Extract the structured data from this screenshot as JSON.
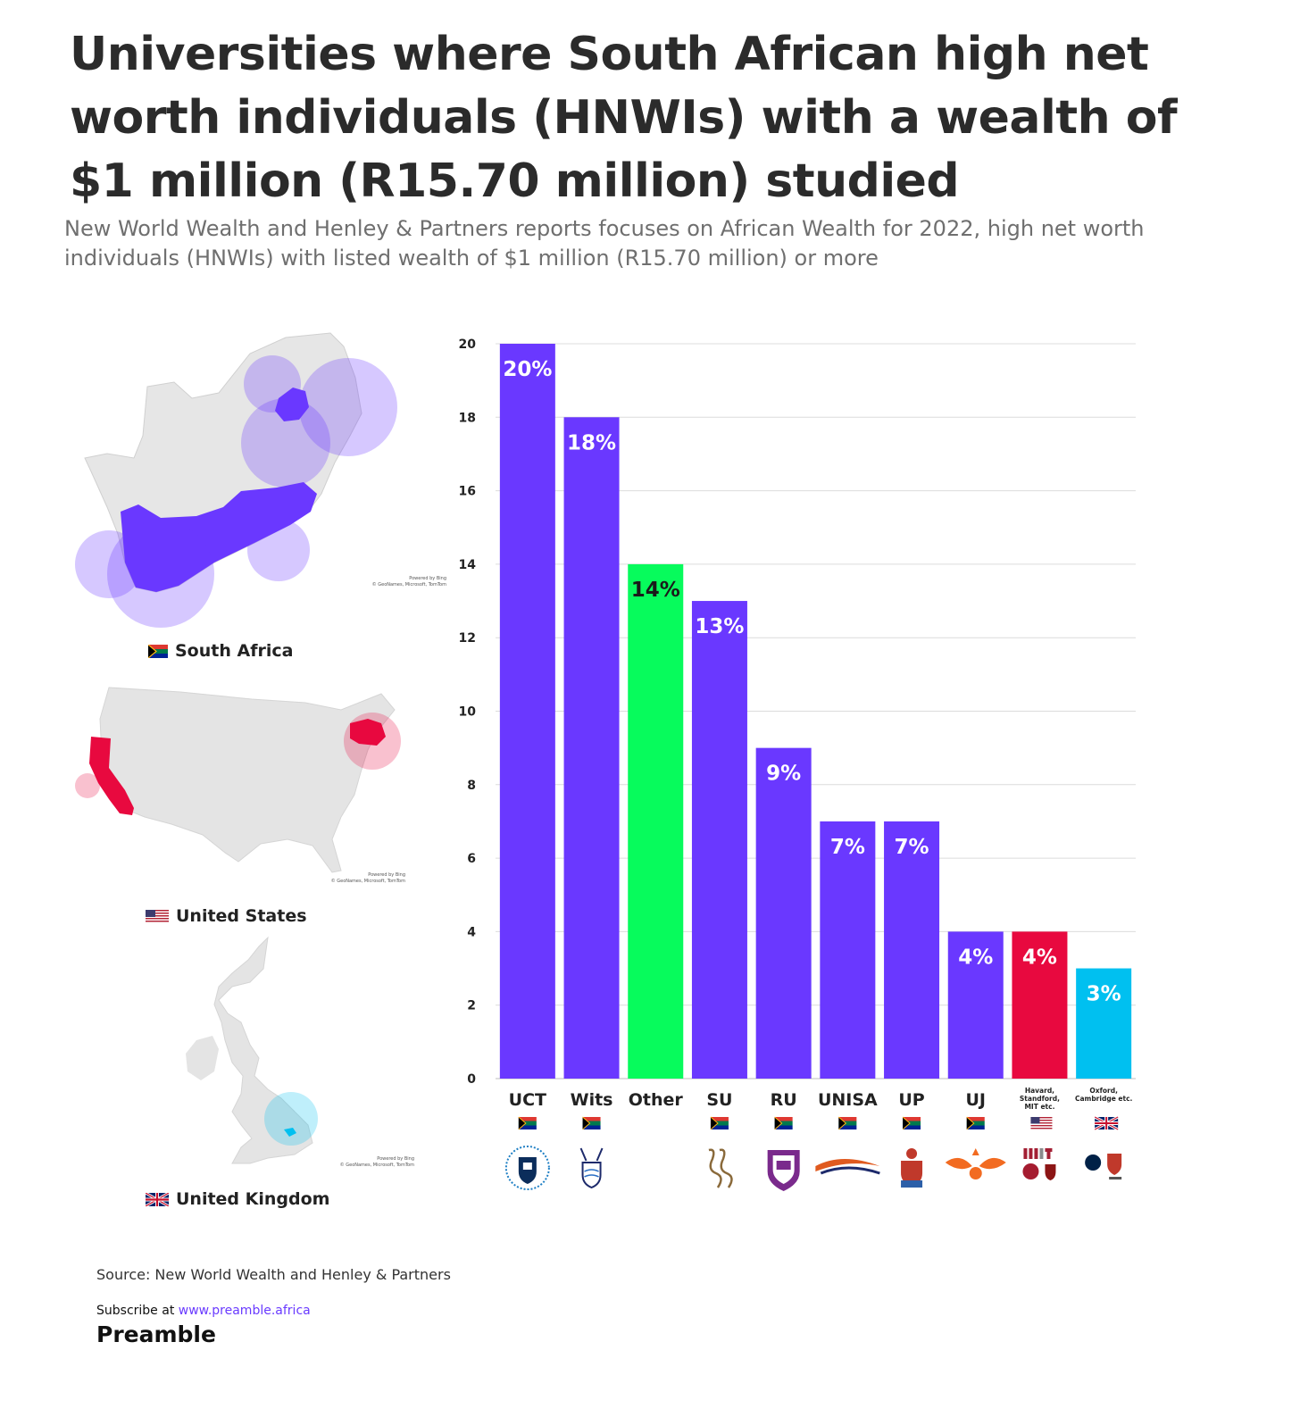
{
  "title": "Universities where South African high net worth individuals (HNWIs) with a wealth of $1 million (R15.70 million) studied",
  "subtitle": "New World Wealth and Henley & Partners reports focuses on African Wealth for 2022, high net worth individuals (HNWIs) with listed wealth of $1 million (R15.70 million) or more",
  "maps": {
    "south_africa": {
      "label": "South Africa",
      "credit_line1": "Powered by Bing",
      "credit_line2": "© GeoNames, Microsoft, TomTom"
    },
    "united_states": {
      "label": "United States",
      "credit_line1": "Powered by Bing",
      "credit_line2": "© GeoNames, Microsoft, TomTom"
    },
    "united_kingdom": {
      "label": "United Kingdom",
      "credit_line1": "Powered by Bing",
      "credit_line2": "© GeoNames, Microsoft, TomTom"
    }
  },
  "colors": {
    "sa": "#6a38ff",
    "other": "#07fb5c",
    "us": "#e8093f",
    "uk": "#00c0f0",
    "map_grey": "#e4e4e4"
  },
  "chart_data": {
    "type": "bar",
    "ylim": [
      0,
      20
    ],
    "yticks": [
      0,
      2,
      4,
      6,
      8,
      10,
      12,
      14,
      16,
      18,
      20
    ],
    "grid": true,
    "categories": [
      "UCT",
      "Wits",
      "Other",
      "SU",
      "RU",
      "UNISA",
      "UP",
      "UJ",
      "Havard, Standford, MIT etc.",
      "Oxford, Cambridge etc."
    ],
    "values": [
      20,
      18,
      14,
      13,
      9,
      7,
      7,
      4,
      4,
      3
    ],
    "labels": [
      "20%",
      "18%",
      "14%",
      "13%",
      "9%",
      "7%",
      "7%",
      "4%",
      "4%",
      "3%"
    ],
    "bar_colors": [
      "#6a38ff",
      "#6a38ff",
      "#07fb5c",
      "#6a38ff",
      "#6a38ff",
      "#6a38ff",
      "#6a38ff",
      "#6a38ff",
      "#e8093f",
      "#00c0f0"
    ],
    "label_colors": [
      "#ffffff",
      "#ffffff",
      "#1a1a1a",
      "#ffffff",
      "#ffffff",
      "#ffffff",
      "#ffffff",
      "#ffffff",
      "#ffffff",
      "#ffffff"
    ],
    "flags": [
      "za",
      "za",
      "",
      "za",
      "za",
      "za",
      "za",
      "za",
      "us",
      "uk"
    ],
    "logo_icons": [
      "uct-crest-icon",
      "wits-crest-icon",
      "",
      "su-logo-icon",
      "ru-crest-icon",
      "unisa-logo-icon",
      "up-crest-icon",
      "uj-logo-icon",
      "mit-harvard-stanford-logos-icon",
      "oxford-cambridge-logos-icon"
    ]
  },
  "footer": {
    "source": "Source: New World Wealth and Henley & Partners",
    "subscribe_prefix": "Subscribe at ",
    "subscribe_url": "www.preamble.africa",
    "brand": "Preamble"
  }
}
